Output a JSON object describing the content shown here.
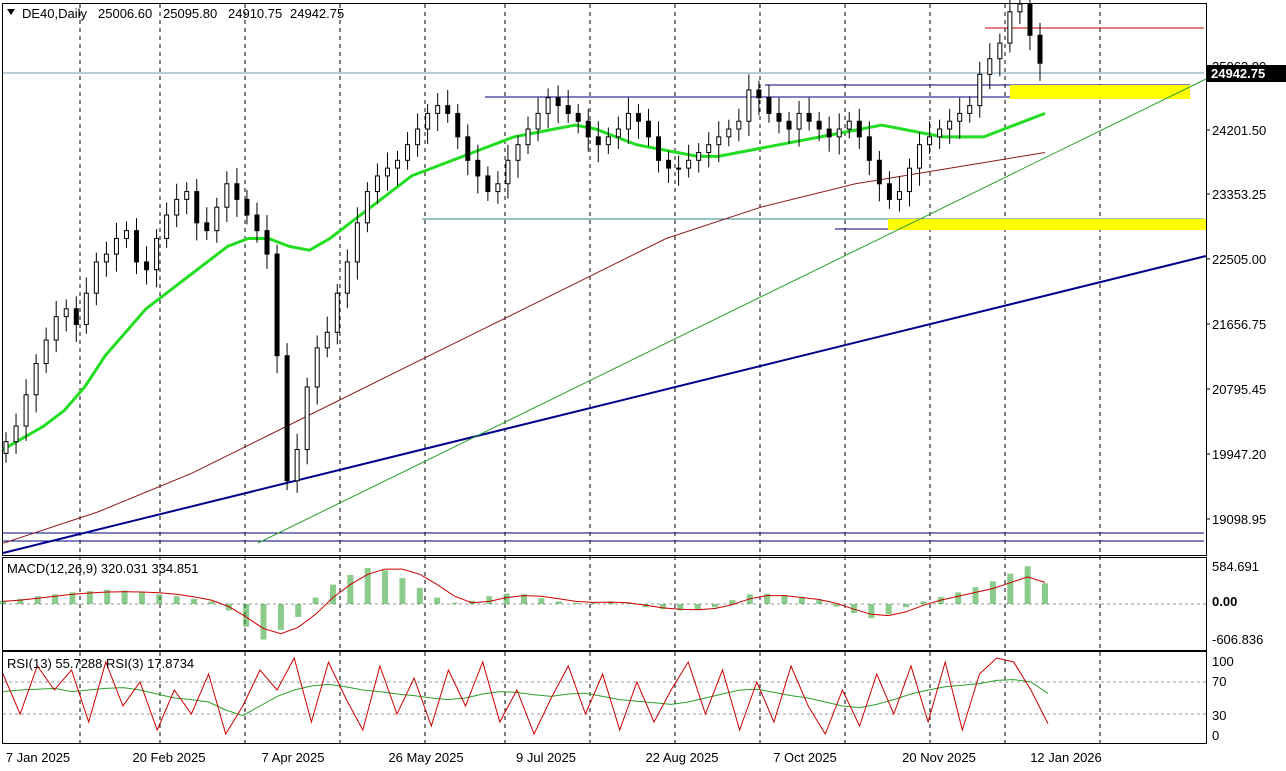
{
  "chart_data": {
    "type": "candlestick",
    "header": {
      "symbol": "DE40,Daily",
      "open": "25006.60",
      "high": "25095.80",
      "low": "24910.75",
      "close": "24942.75"
    },
    "y_axis": {
      "range": [
        18650,
        25700
      ],
      "ticks": [
        "25062.80",
        "24201.50",
        "23353.25",
        "22505.00",
        "21656.75",
        "20795.45",
        "19947.20",
        "19098.95"
      ]
    },
    "current_price": "24942.75",
    "x_axis": {
      "labels": [
        "7 Jan 2025",
        "20 Feb 2025",
        "7 Apr 2025",
        "26 May 2025",
        "9 Jul 2025",
        "22 Aug 2025",
        "7 Oct 2025",
        "20 Nov 2025",
        "12 Jan 2026"
      ]
    },
    "price_series": {
      "close": [
        20100,
        20300,
        20700,
        21100,
        21400,
        21700,
        21800,
        21600,
        22000,
        22400,
        22500,
        22700,
        22800,
        22400,
        22300,
        22700,
        23000,
        23200,
        23300,
        22900,
        22800,
        23100,
        23400,
        23200,
        23000,
        22800,
        22500,
        21200,
        19600,
        20000,
        20800,
        21300,
        21500,
        22000,
        22400,
        22900,
        23300,
        23500,
        23600,
        23700,
        23900,
        24100,
        24300,
        24400,
        24300,
        24000,
        23700,
        23500,
        23300,
        23400,
        23700,
        23900,
        24100,
        24300,
        24500,
        24400,
        24300,
        24200,
        24000,
        23900,
        24000,
        24100,
        24300,
        24200,
        24000,
        23700,
        23600,
        23600,
        23700,
        23800,
        23900,
        24000,
        24100,
        24200,
        24600,
        24500,
        24300,
        24200,
        24100,
        24300,
        24200,
        24100,
        24000,
        24100,
        24200,
        24000,
        23700,
        23400,
        23200,
        23300,
        23600,
        23900,
        24000,
        24100,
        24200,
        24300,
        24400,
        24800,
        25000,
        25200,
        25600,
        25700,
        25300,
        24942
      ],
      "ma_fast": [
        20000,
        20150,
        20300,
        20500,
        20800,
        21200,
        21500,
        21800,
        22000,
        22200,
        22400,
        22600,
        22700,
        22700,
        22600,
        22550,
        22700,
        22900,
        23100,
        23300,
        23500,
        23600,
        23700,
        23800,
        23900,
        24000,
        24050,
        24100,
        24150,
        24100,
        24000,
        23900,
        23850,
        23800,
        23750,
        23750,
        23800,
        23850,
        23900,
        23950,
        24000,
        24050,
        24100,
        24150,
        24100,
        24050,
        24000,
        24000,
        24000,
        24100,
        24200,
        24300
      ],
      "ma_slow": [
        18800,
        19200,
        19700,
        20300,
        20900,
        21500,
        22100,
        22700,
        23100,
        23400,
        23600,
        23800
      ]
    },
    "indicators": [
      {
        "name": "MACD",
        "label": "MACD(12,26,9) 320.031 334.851",
        "ticks": [
          "584.691",
          "0.00",
          "-606.836"
        ],
        "range": [
          -650,
          650
        ],
        "histogram": [
          50,
          80,
          120,
          150,
          180,
          200,
          220,
          210,
          180,
          150,
          120,
          80,
          40,
          -100,
          -350,
          -550,
          -400,
          -200,
          100,
          300,
          450,
          560,
          520,
          400,
          250,
          100,
          20,
          50,
          120,
          160,
          150,
          90,
          40,
          20,
          30,
          40,
          10,
          -50,
          -80,
          -100,
          -90,
          -50,
          60,
          150,
          160,
          140,
          110,
          60,
          -40,
          -140,
          -220,
          -160,
          -50,
          40,
          110,
          180,
          260,
          350,
          470,
          584,
          320
        ],
        "signal": [
          40,
          60,
          90,
          120,
          150,
          170,
          185,
          190,
          185,
          175,
          150,
          110,
          60,
          -40,
          -200,
          -380,
          -460,
          -360,
          -160,
          100,
          300,
          460,
          540,
          540,
          460,
          300,
          120,
          20,
          40,
          100,
          130,
          120,
          80,
          40,
          25,
          30,
          20,
          -20,
          -60,
          -80,
          -90,
          -70,
          -10,
          80,
          130,
          130,
          100,
          70,
          10,
          -80,
          -160,
          -180,
          -120,
          -20,
          60,
          120,
          180,
          240,
          330,
          420,
          335
        ]
      },
      {
        "name": "RSI",
        "label": "RSI(13) 55.7288  RSI(3) 17.8734",
        "ticks": [
          "100",
          "70",
          "30",
          "0"
        ],
        "range": [
          0,
          100
        ],
        "rsi13": [
          58,
          60,
          61,
          62,
          58,
          60,
          62,
          63,
          60,
          55,
          50,
          48,
          45,
          35,
          28,
          40,
          52,
          60,
          65,
          67,
          64,
          60,
          58,
          55,
          53,
          50,
          48,
          50,
          55,
          58,
          57,
          54,
          52,
          55,
          56,
          52,
          48,
          46,
          44,
          42,
          45,
          50,
          55,
          60,
          61,
          57,
          53,
          50,
          45,
          40,
          38,
          42,
          48,
          55,
          60,
          64,
          66,
          68,
          72,
          73,
          70,
          55.7
        ],
        "rsi3": [
          80,
          30,
          90,
          60,
          85,
          20,
          95,
          40,
          70,
          10,
          60,
          30,
          80,
          5,
          40,
          85,
          60,
          100,
          20,
          95,
          50,
          10,
          90,
          30,
          75,
          15,
          85,
          40,
          95,
          20,
          60,
          5,
          50,
          90,
          30,
          80,
          10,
          70,
          20,
          60,
          95,
          30,
          85,
          10,
          70,
          20,
          90,
          40,
          5,
          60,
          15,
          80,
          30,
          90,
          20,
          95,
          10,
          80,
          100,
          95,
          60,
          17.9
        ]
      }
    ]
  }
}
